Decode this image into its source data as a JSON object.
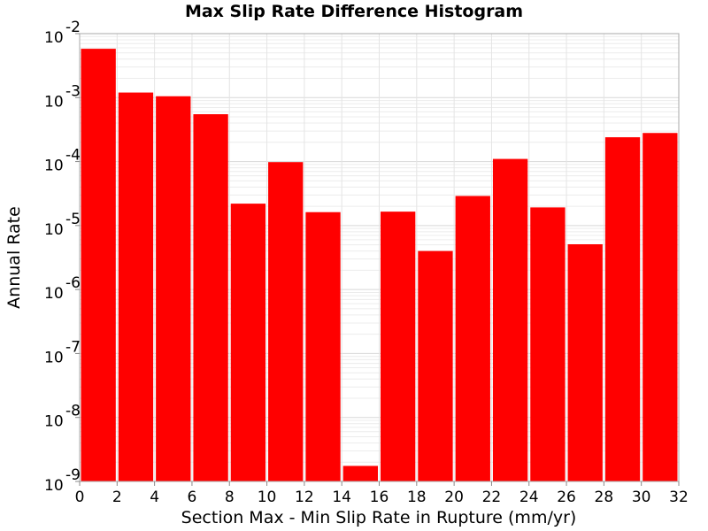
{
  "chart_data": {
    "type": "bar",
    "title": "Max Slip Rate Difference Histogram",
    "xlabel": "Section Max - Min Slip Rate in Rupture (mm/yr)",
    "ylabel": "Annual Rate",
    "yscale": "log",
    "xlim": [
      0,
      32
    ],
    "ylim": [
      1e-09,
      0.01
    ],
    "bin_width": 2,
    "grid": true,
    "legend": "none",
    "bar_color": "#ff0000",
    "x_ticks": [
      "0",
      "2",
      "4",
      "6",
      "8",
      "10",
      "12",
      "14",
      "16",
      "18",
      "20",
      "22",
      "24",
      "26",
      "28",
      "30",
      "32"
    ],
    "y_ticks": [
      {
        "base": "10",
        "exp": "-9"
      },
      {
        "base": "10",
        "exp": "-8"
      },
      {
        "base": "10",
        "exp": "-7"
      },
      {
        "base": "10",
        "exp": "-6"
      },
      {
        "base": "10",
        "exp": "-5"
      },
      {
        "base": "10",
        "exp": "-4"
      },
      {
        "base": "10",
        "exp": "-3"
      },
      {
        "base": "10",
        "exp": "-2"
      }
    ],
    "bins": [
      {
        "x": 1,
        "value": 0.0058
      },
      {
        "x": 3,
        "value": 0.0012
      },
      {
        "x": 5,
        "value": 0.00105
      },
      {
        "x": 7,
        "value": 0.00055
      },
      {
        "x": 9,
        "value": 2.2e-05
      },
      {
        "x": 11,
        "value": 9.8e-05
      },
      {
        "x": 13,
        "value": 1.62e-05
      },
      {
        "x": 15,
        "value": 1.75e-09
      },
      {
        "x": 17,
        "value": 1.65e-05
      },
      {
        "x": 19,
        "value": 4e-06
      },
      {
        "x": 21,
        "value": 2.9e-05
      },
      {
        "x": 23,
        "value": 0.00011
      },
      {
        "x": 25,
        "value": 1.92e-05
      },
      {
        "x": 27,
        "value": 5.1e-06
      },
      {
        "x": 29,
        "value": 0.00024
      },
      {
        "x": 31,
        "value": 0.00028
      }
    ]
  }
}
